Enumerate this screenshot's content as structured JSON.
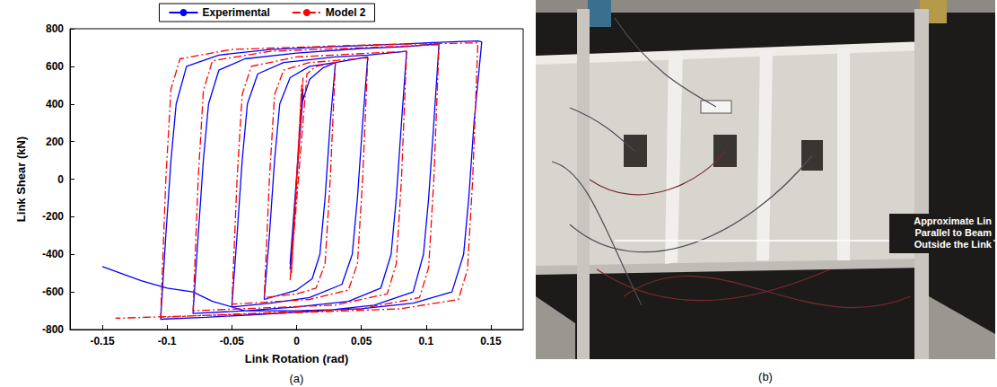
{
  "chart_data": {
    "type": "line",
    "title": "(a)",
    "x_label": "Link Rotation (rad)",
    "y_label": "Link Shear (kN)",
    "xlim": [
      -0.175,
      0.175
    ],
    "xticks": [
      -0.15,
      -0.1,
      -0.05,
      0,
      0.05,
      0.1,
      0.15
    ],
    "ylim": [
      -800,
      800
    ],
    "yticks": [
      -800,
      -600,
      -400,
      -200,
      0,
      200,
      400,
      600,
      800
    ],
    "grid": false,
    "legend": "top",
    "series": [
      {
        "name": "Experimental",
        "color": "#0000ff",
        "line_style": "solid",
        "x": [
          0,
          0.005,
          -0.005,
          0.005,
          -0.005,
          0.004,
          0.01,
          0.02,
          0.03,
          0.026,
          0.022,
          0.018,
          0.012,
          0,
          -0.025,
          -0.021,
          -0.017,
          -0.013,
          -0.005,
          0.01,
          0.03,
          0.055,
          0.051,
          0.047,
          0.043,
          0.035,
          0.01,
          -0.02,
          -0.05,
          -0.046,
          -0.042,
          -0.038,
          -0.03,
          -0.01,
          0.03,
          0.055,
          0.085,
          0.081,
          0.077,
          0.073,
          0.065,
          0.04,
          0,
          -0.04,
          -0.08,
          -0.076,
          -0.072,
          -0.068,
          -0.06,
          -0.04,
          0,
          0.05,
          0.085,
          0.11,
          0.106,
          0.102,
          0.098,
          0.09,
          0.06,
          0.02,
          -0.03,
          -0.07,
          -0.105,
          -0.101,
          -0.097,
          -0.093,
          -0.085,
          -0.06,
          -0.02,
          0.03,
          0.08,
          0.11,
          0.14,
          0.143,
          0.137,
          0.133,
          0.129,
          0.12,
          0.09,
          0.05,
          0,
          -0.04,
          -0.065,
          -0.08,
          -0.1,
          -0.12,
          -0.15
        ],
        "values": [
          0,
          450,
          -450,
          480,
          -480,
          400,
          530,
          590,
          620,
          300,
          -100,
          -400,
          -530,
          -590,
          -640,
          -300,
          100,
          400,
          540,
          600,
          620,
          650,
          300,
          -100,
          -400,
          -560,
          -630,
          -660,
          -680,
          -300,
          100,
          400,
          560,
          620,
          650,
          660,
          680,
          300,
          -100,
          -400,
          -580,
          -650,
          -680,
          -700,
          -715,
          -300,
          100,
          400,
          580,
          640,
          670,
          695,
          705,
          720,
          300,
          -100,
          -400,
          -600,
          -670,
          -700,
          -720,
          -735,
          -745,
          -300,
          100,
          400,
          600,
          660,
          690,
          705,
          718,
          728,
          735,
          730,
          300,
          -100,
          -400,
          -600,
          -660,
          -690,
          -700,
          -700,
          -650,
          -600,
          -580,
          -540,
          -465
        ]
      },
      {
        "name": "Model 2",
        "color": "#ff0000",
        "line_style": "dashdot",
        "x": [
          0,
          0.004,
          -0.004,
          0.005,
          -0.005,
          0.008,
          0.015,
          0.03,
          0.026,
          0.022,
          0.015,
          0,
          -0.025,
          -0.021,
          -0.017,
          -0.01,
          0.01,
          0.055,
          0.051,
          0.047,
          0.04,
          0.01,
          -0.05,
          -0.046,
          -0.042,
          -0.035,
          0,
          0.085,
          0.081,
          0.077,
          0.07,
          0.03,
          -0.08,
          -0.076,
          -0.072,
          -0.065,
          -0.02,
          0.11,
          0.106,
          0.102,
          0.095,
          0.05,
          -0.105,
          -0.101,
          -0.097,
          -0.09,
          -0.05,
          0.06,
          0.14,
          0.136,
          0.132,
          0.125,
          0.08,
          0,
          -0.14
        ],
        "values": [
          0,
          500,
          -500,
          540,
          -540,
          560,
          600,
          620,
          0,
          -450,
          -580,
          -610,
          -630,
          0,
          450,
          580,
          620,
          645,
          0,
          -450,
          -590,
          -640,
          -665,
          0,
          450,
          600,
          650,
          680,
          0,
          -450,
          -610,
          -670,
          -700,
          0,
          470,
          630,
          680,
          715,
          0,
          -470,
          -630,
          -690,
          -735,
          0,
          480,
          640,
          690,
          715,
          725,
          0,
          -480,
          -640,
          -690,
          -710,
          -740
        ]
      }
    ]
  },
  "photo": {
    "label": "(b)",
    "annotation": [
      "Approximate Lin",
      "Parallel to Beam",
      "Outside the Link"
    ]
  }
}
